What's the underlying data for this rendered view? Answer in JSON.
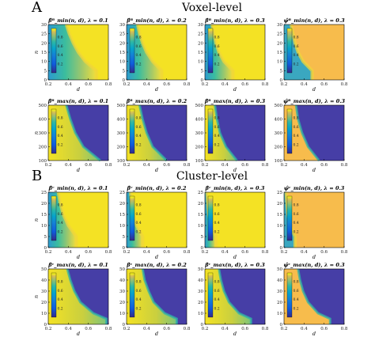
{
  "sections": [
    {
      "letter": "A",
      "heading": "Voxel-level"
    },
    {
      "letter": "B",
      "heading": "Cluster-level"
    }
  ],
  "colors": {
    "yellow": "#f4e224",
    "orange": "#f7bc4c",
    "purple": "#463ea6",
    "frame": "#000000"
  },
  "chart_data": [
    {
      "type": "heatmap",
      "section": "A",
      "title": "β̂ᴮ_min(n, d), λ = 0.1",
      "xlabel": "d",
      "ylabel": "n",
      "xlim": [
        0.2,
        0.8
      ],
      "ylim": [
        0,
        30
      ],
      "xticks": [
        0.2,
        0.4,
        0.6,
        0.8
      ],
      "yticks": [
        0,
        5,
        10,
        15,
        20,
        25,
        30
      ],
      "colorbar_ticks": [
        0.2,
        0.4,
        0.6,
        0.8
      ],
      "colormap": "parula",
      "boundary_d_at_n": [
        {
          "n": 5,
          "d": 0.68
        },
        {
          "n": 10,
          "d": 0.57
        },
        {
          "n": 15,
          "d": 0.5
        },
        {
          "n": 20,
          "d": 0.45
        },
        {
          "n": 25,
          "d": 0.41
        },
        {
          "n": 30,
          "d": 0.38
        }
      ],
      "note_region": "d > boundary: value ≈ 1"
    },
    {
      "type": "heatmap",
      "section": "A",
      "title": "β̂ᴮ_min(n, d), λ = 0.2",
      "xlabel": "d",
      "ylabel": "",
      "xlim": [
        0.2,
        0.8
      ],
      "ylim": [
        0,
        30
      ],
      "xticks": [
        0.2,
        0.4,
        0.6,
        0.8
      ],
      "yticks": [
        0,
        5,
        10,
        15,
        20,
        25,
        30
      ],
      "colorbar_ticks": [
        0.2,
        0.4,
        0.6,
        0.8
      ],
      "colormap": "parula",
      "boundary_d_at_n": [
        {
          "n": 5,
          "d": 0.55
        },
        {
          "n": 10,
          "d": 0.46
        },
        {
          "n": 15,
          "d": 0.4
        },
        {
          "n": 20,
          "d": 0.36
        },
        {
          "n": 25,
          "d": 0.33
        },
        {
          "n": 30,
          "d": 0.31
        }
      ]
    },
    {
      "type": "heatmap",
      "section": "A",
      "title": "β̂ᴮ_min(n, d), λ = 0.3",
      "xlabel": "d",
      "ylabel": "",
      "xlim": [
        0.2,
        0.8
      ],
      "ylim": [
        0,
        30
      ],
      "xticks": [
        0.2,
        0.4,
        0.6,
        0.8
      ],
      "yticks": [
        0,
        5,
        10,
        15,
        20,
        25,
        30
      ],
      "colorbar_ticks": [
        0.2,
        0.4,
        0.6,
        0.8
      ],
      "colormap": "parula",
      "boundary_d_at_n": [
        {
          "n": 5,
          "d": 0.48
        },
        {
          "n": 10,
          "d": 0.39
        },
        {
          "n": 15,
          "d": 0.34
        },
        {
          "n": 20,
          "d": 0.31
        },
        {
          "n": 25,
          "d": 0.29
        },
        {
          "n": 30,
          "d": 0.27
        }
      ]
    },
    {
      "type": "heatmap",
      "section": "A",
      "title": "ψ̂ᴮ_min(n, d), λ = 0.3",
      "xlabel": "d",
      "ylabel": "",
      "xlim": [
        0.2,
        0.8
      ],
      "ylim": [
        0,
        30
      ],
      "xticks": [
        0.2,
        0.4,
        0.6,
        0.8
      ],
      "yticks": [
        0,
        5,
        10,
        15,
        20,
        25,
        30
      ],
      "colorbar_ticks": [
        0.2,
        0.4,
        0.6,
        0.8
      ],
      "colormap": "parula",
      "boundary_d_at_n": [
        {
          "n": 5,
          "d": 0.48
        },
        {
          "n": 10,
          "d": 0.39
        },
        {
          "n": 15,
          "d": 0.34
        },
        {
          "n": 20,
          "d": 0.31
        },
        {
          "n": 25,
          "d": 0.29
        },
        {
          "n": 30,
          "d": 0.27
        }
      ],
      "note_region": "d > boundary: value ≈ 0.7 (orange)"
    },
    {
      "type": "heatmap",
      "section": "A",
      "title": "β̂ᴮ_max(n, d), λ = 0.1",
      "xlabel": "d",
      "ylabel": "n",
      "xlim": [
        0.2,
        0.8
      ],
      "ylim": [
        100,
        500
      ],
      "xticks": [
        0.2,
        0.4,
        0.6,
        0.8
      ],
      "yticks": [
        100,
        200,
        300,
        400,
        500
      ],
      "colorbar_ticks": [
        0.2,
        0.4,
        0.6,
        0.8
      ],
      "colormap": "parula",
      "boundary_d_at_n": [
        {
          "n": 100,
          "d": 0.72
        },
        {
          "n": 200,
          "d": 0.55
        },
        {
          "n": 300,
          "d": 0.47
        },
        {
          "n": 400,
          "d": 0.42
        },
        {
          "n": 500,
          "d": 0.38
        }
      ],
      "note_region": "d > boundary: value ≈ 0 (purple)"
    },
    {
      "type": "heatmap",
      "section": "A",
      "title": "β̂ᴮ_max(n, d), λ = 0.2",
      "xlabel": "d",
      "ylabel": "",
      "xlim": [
        0.2,
        0.8
      ],
      "ylim": [
        100,
        500
      ],
      "xticks": [
        0.2,
        0.4,
        0.6,
        0.8
      ],
      "yticks": [
        100,
        200,
        300,
        400,
        500
      ],
      "colorbar_ticks": [
        0.2,
        0.4,
        0.6,
        0.8
      ],
      "colormap": "parula",
      "boundary_d_at_n": [
        {
          "n": 100,
          "d": 0.6
        },
        {
          "n": 200,
          "d": 0.46
        },
        {
          "n": 300,
          "d": 0.4
        },
        {
          "n": 400,
          "d": 0.36
        },
        {
          "n": 500,
          "d": 0.33
        }
      ]
    },
    {
      "type": "heatmap",
      "section": "A",
      "title": "β̂ᴮ_max(n, d), λ = 0.3",
      "xlabel": "d",
      "ylabel": "",
      "xlim": [
        0.2,
        0.8
      ],
      "ylim": [
        100,
        500
      ],
      "xticks": [
        0.2,
        0.4,
        0.6,
        0.8
      ],
      "yticks": [
        100,
        200,
        300,
        400,
        500
      ],
      "colorbar_ticks": [
        0.2,
        0.4,
        0.6,
        0.8
      ],
      "colormap": "parula",
      "boundary_d_at_n": [
        {
          "n": 100,
          "d": 0.52
        },
        {
          "n": 200,
          "d": 0.41
        },
        {
          "n": 300,
          "d": 0.35
        },
        {
          "n": 400,
          "d": 0.32
        },
        {
          "n": 500,
          "d": 0.3
        }
      ]
    },
    {
      "type": "heatmap",
      "section": "A",
      "title": "ψ̂ᴮ_max(n, d), λ = 0.3",
      "xlabel": "d",
      "ylabel": "",
      "xlim": [
        0.2,
        0.8
      ],
      "ylim": [
        100,
        500
      ],
      "xticks": [
        0.2,
        0.4,
        0.6,
        0.8
      ],
      "yticks": [
        100,
        200,
        300,
        400,
        500
      ],
      "colorbar_ticks": [
        0.2,
        0.4,
        0.6,
        0.8
      ],
      "colormap": "parula",
      "boundary_d_at_n": [
        {
          "n": 100,
          "d": 0.55
        },
        {
          "n": 200,
          "d": 0.44
        },
        {
          "n": 300,
          "d": 0.38
        },
        {
          "n": 400,
          "d": 0.34
        },
        {
          "n": 500,
          "d": 0.32
        }
      ],
      "note_region": "d < boundary: value ≈ 0.7 (orange)"
    },
    {
      "type": "heatmap",
      "section": "B",
      "title": "β̂ᶜ_min(n, d), λ = 0.1",
      "xlabel": "d",
      "ylabel": "n",
      "xlim": [
        0.2,
        0.8
      ],
      "ylim": [
        0,
        25
      ],
      "xticks": [
        0.2,
        0.4,
        0.6,
        0.8
      ],
      "yticks": [
        0,
        5,
        10,
        15,
        20,
        25
      ],
      "colorbar_ticks": [
        0.2,
        0.4,
        0.6,
        0.8
      ],
      "colormap": "parula",
      "boundary_d_at_n": [
        {
          "n": 5,
          "d": 0.48
        },
        {
          "n": 10,
          "d": 0.4
        },
        {
          "n": 15,
          "d": 0.35
        },
        {
          "n": 20,
          "d": 0.32
        },
        {
          "n": 25,
          "d": 0.3
        }
      ]
    },
    {
      "type": "heatmap",
      "section": "B",
      "title": "β̂ᶜ_min(n, d), λ = 0.2",
      "xlabel": "d",
      "ylabel": "",
      "xlim": [
        0.2,
        0.8
      ],
      "ylim": [
        0,
        25
      ],
      "xticks": [
        0.2,
        0.4,
        0.6,
        0.8
      ],
      "yticks": [
        0,
        5,
        10,
        15,
        20,
        25
      ],
      "colorbar_ticks": [
        0.2,
        0.4,
        0.6,
        0.8
      ],
      "colormap": "parula",
      "boundary_d_at_n": [
        {
          "n": 5,
          "d": 0.36
        },
        {
          "n": 10,
          "d": 0.3
        },
        {
          "n": 15,
          "d": 0.27
        },
        {
          "n": 20,
          "d": 0.25
        },
        {
          "n": 25,
          "d": 0.24
        }
      ]
    },
    {
      "type": "heatmap",
      "section": "B",
      "title": "β̂ᶜ_min(n, d), λ = 0.3",
      "xlabel": "d",
      "ylabel": "",
      "xlim": [
        0.2,
        0.8
      ],
      "ylim": [
        0,
        25
      ],
      "xticks": [
        0.2,
        0.4,
        0.6,
        0.8
      ],
      "yticks": [
        0,
        5,
        10,
        15,
        20,
        25
      ],
      "colorbar_ticks": [
        0.2,
        0.4,
        0.6,
        0.8
      ],
      "colormap": "parula",
      "boundary_d_at_n": [
        {
          "n": 5,
          "d": 0.31
        },
        {
          "n": 10,
          "d": 0.26
        },
        {
          "n": 15,
          "d": 0.24
        },
        {
          "n": 20,
          "d": 0.23
        },
        {
          "n": 25,
          "d": 0.22
        }
      ]
    },
    {
      "type": "heatmap",
      "section": "B",
      "title": "ψ̂ᶜ_min(n, d), λ = 0.3",
      "xlabel": "d",
      "ylabel": "",
      "xlim": [
        0.2,
        0.8
      ],
      "ylim": [
        0,
        25
      ],
      "xticks": [
        0.2,
        0.4,
        0.6,
        0.8
      ],
      "yticks": [
        0,
        5,
        10,
        15,
        20,
        25
      ],
      "colorbar_ticks": [
        0.2,
        0.4,
        0.6,
        0.8
      ],
      "colormap": "parula",
      "boundary_d_at_n": [
        {
          "n": 5,
          "d": 0.31
        },
        {
          "n": 10,
          "d": 0.26
        },
        {
          "n": 15,
          "d": 0.24
        },
        {
          "n": 20,
          "d": 0.23
        },
        {
          "n": 25,
          "d": 0.22
        }
      ],
      "note_region": "d > boundary: value ≈ 0.7 (orange)"
    },
    {
      "type": "heatmap",
      "section": "B",
      "title": "β̂ᶜ_max(n, d), λ = 0.1",
      "xlabel": "d",
      "ylabel": "n",
      "xlim": [
        0.2,
        0.8
      ],
      "ylim": [
        0,
        50
      ],
      "xticks": [
        0.2,
        0.4,
        0.6,
        0.8
      ],
      "yticks": [
        0,
        10,
        20,
        30,
        40,
        50
      ],
      "colorbar_ticks": [
        0.2,
        0.4,
        0.6,
        0.8
      ],
      "colormap": "parula",
      "boundary_d_at_n": [
        {
          "n": 5,
          "d": 0.78
        },
        {
          "n": 10,
          "d": 0.65
        },
        {
          "n": 20,
          "d": 0.52
        },
        {
          "n": 30,
          "d": 0.46
        },
        {
          "n": 40,
          "d": 0.42
        },
        {
          "n": 50,
          "d": 0.39
        }
      ]
    },
    {
      "type": "heatmap",
      "section": "B",
      "title": "β̂ᶜ_max(n, d), λ = 0.2",
      "xlabel": "d",
      "ylabel": "",
      "xlim": [
        0.2,
        0.8
      ],
      "ylim": [
        0,
        50
      ],
      "xticks": [
        0.2,
        0.4,
        0.6,
        0.8
      ],
      "yticks": [
        0,
        10,
        20,
        30,
        40,
        50
      ],
      "colorbar_ticks": [
        0.2,
        0.4,
        0.6,
        0.8
      ],
      "colormap": "parula",
      "boundary_d_at_n": [
        {
          "n": 5,
          "d": 0.7
        },
        {
          "n": 10,
          "d": 0.58
        },
        {
          "n": 20,
          "d": 0.47
        },
        {
          "n": 30,
          "d": 0.42
        },
        {
          "n": 40,
          "d": 0.38
        },
        {
          "n": 50,
          "d": 0.36
        }
      ]
    },
    {
      "type": "heatmap",
      "section": "B",
      "title": "β̂ᶜ_max(n, d), λ = 0.3",
      "xlabel": "d",
      "ylabel": "",
      "xlim": [
        0.2,
        0.8
      ],
      "ylim": [
        0,
        50
      ],
      "xticks": [
        0.2,
        0.4,
        0.6,
        0.8
      ],
      "yticks": [
        0,
        10,
        20,
        30,
        40,
        50
      ],
      "colorbar_ticks": [
        0.2,
        0.4,
        0.6,
        0.8
      ],
      "colormap": "parula",
      "boundary_d_at_n": [
        {
          "n": 5,
          "d": 0.66
        },
        {
          "n": 10,
          "d": 0.54
        },
        {
          "n": 20,
          "d": 0.44
        },
        {
          "n": 30,
          "d": 0.39
        },
        {
          "n": 40,
          "d": 0.36
        },
        {
          "n": 50,
          "d": 0.34
        }
      ]
    },
    {
      "type": "heatmap",
      "section": "B",
      "title": "ψ̂ᶜ_max(n, d), λ = 0.3",
      "xlabel": "d",
      "ylabel": "",
      "xlim": [
        0.2,
        0.8
      ],
      "ylim": [
        0,
        50
      ],
      "xticks": [
        0.2,
        0.4,
        0.6,
        0.8
      ],
      "yticks": [
        0,
        10,
        20,
        30,
        40,
        50
      ],
      "colorbar_ticks": [
        0.2,
        0.4,
        0.6,
        0.8
      ],
      "colormap": "parula",
      "boundary_d_at_n": [
        {
          "n": 5,
          "d": 0.66
        },
        {
          "n": 10,
          "d": 0.54
        },
        {
          "n": 20,
          "d": 0.44
        },
        {
          "n": 30,
          "d": 0.39
        },
        {
          "n": 40,
          "d": 0.36
        },
        {
          "n": 50,
          "d": 0.34
        }
      ],
      "note_region": "d < boundary: value ≈ 0.7 (orange)"
    }
  ]
}
